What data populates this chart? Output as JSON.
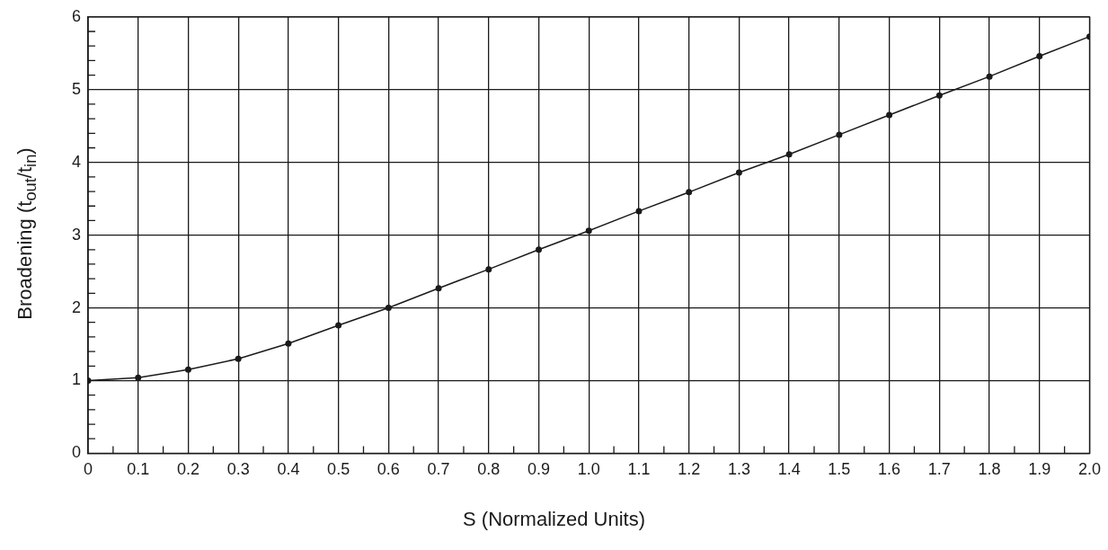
{
  "chart_data": {
    "type": "line",
    "xlabel": "S (Normalized Units)",
    "ylabel": "Broadening (t$_{out}$/t$_{in}$)",
    "x": [
      0,
      0.1,
      0.2,
      0.3,
      0.4,
      0.5,
      0.6,
      0.7,
      0.8,
      0.9,
      1.0,
      1.1,
      1.2,
      1.3,
      1.4,
      1.5,
      1.6,
      1.7,
      1.8,
      1.9,
      2.0
    ],
    "series": [
      {
        "color": "#1a1a1a",
        "values": [
          1.0,
          1.04,
          1.15,
          1.3,
          1.51,
          1.76,
          2.0,
          2.27,
          2.53,
          2.8,
          3.06,
          3.33,
          3.59,
          3.86,
          4.11,
          4.38,
          4.65,
          4.92,
          5.18,
          5.46,
          5.73
        ]
      }
    ],
    "xlim": [
      0,
      2.0
    ],
    "xticks": [
      {
        "value": 0,
        "label": "0"
      },
      {
        "value": 0.05,
        "label": null
      },
      {
        "value": 0.1,
        "label": "0.1"
      },
      {
        "value": 0.15,
        "label": null
      },
      {
        "value": 0.2,
        "label": "0.2"
      },
      {
        "value": 0.25,
        "label": null
      },
      {
        "value": 0.3,
        "label": "0.3"
      },
      {
        "value": 0.35,
        "label": null
      },
      {
        "value": 0.4,
        "label": "0.4"
      },
      {
        "value": 0.45,
        "label": null
      },
      {
        "value": 0.5,
        "label": "0.5"
      },
      {
        "value": 0.55,
        "label": null
      },
      {
        "value": 0.6,
        "label": "0.6"
      },
      {
        "value": 0.65,
        "label": null
      },
      {
        "value": 0.7,
        "label": "0.7"
      },
      {
        "value": 0.75,
        "label": null
      },
      {
        "value": 0.8,
        "label": "0.8"
      },
      {
        "value": 0.85,
        "label": null
      },
      {
        "value": 0.9,
        "label": "0.9"
      },
      {
        "value": 0.95,
        "label": null
      },
      {
        "value": 1.0,
        "label": "1.0"
      },
      {
        "value": 1.05,
        "label": null
      },
      {
        "value": 1.1,
        "label": "1.1"
      },
      {
        "value": 1.15,
        "label": null
      },
      {
        "value": 1.2,
        "label": "1.2"
      },
      {
        "value": 1.25,
        "label": null
      },
      {
        "value": 1.3,
        "label": "1.3"
      },
      {
        "value": 1.35,
        "label": null
      },
      {
        "value": 1.4,
        "label": "1.4"
      },
      {
        "value": 1.45,
        "label": null
      },
      {
        "value": 1.5,
        "label": "1.5"
      },
      {
        "value": 1.55,
        "label": null
      },
      {
        "value": 1.6,
        "label": "1.6"
      },
      {
        "value": 1.65,
        "label": null
      },
      {
        "value": 1.7,
        "label": "1.7"
      },
      {
        "value": 1.75,
        "label": null
      },
      {
        "value": 1.8,
        "label": "1.8"
      },
      {
        "value": 1.85,
        "label": null
      },
      {
        "value": 1.9,
        "label": "1.9"
      },
      {
        "value": 1.95,
        "label": null
      },
      {
        "value": 2.0,
        "label": "2.0"
      }
    ],
    "ylim": [
      0,
      6
    ],
    "yticks": [
      0,
      {
        "value": 0.2,
        "label": null
      },
      {
        "value": 0.4,
        "label": null
      },
      {
        "value": 0.6,
        "label": null
      },
      {
        "value": 0.8,
        "label": null
      },
      1,
      {
        "value": 1.2,
        "label": null
      },
      {
        "value": 1.4,
        "label": null
      },
      {
        "value": 1.6,
        "label": null
      },
      {
        "value": 1.8,
        "label": null
      },
      2,
      {
        "value": 2.2,
        "label": null
      },
      {
        "value": 2.4,
        "label": null
      },
      {
        "value": 2.6,
        "label": null
      },
      {
        "value": 2.8,
        "label": null
      },
      3,
      {
        "value": 3.2,
        "label": null
      },
      {
        "value": 3.4,
        "label": null
      },
      {
        "value": 3.6,
        "label": null
      },
      {
        "value": 3.8,
        "label": null
      },
      4,
      {
        "value": 4.2,
        "label": null
      },
      {
        "value": 4.4,
        "label": null
      },
      {
        "value": 4.6,
        "label": null
      },
      {
        "value": 4.8,
        "label": null
      },
      5,
      {
        "value": 5.2,
        "label": null
      },
      {
        "value": 5.4,
        "label": null
      },
      {
        "value": 5.6,
        "label": null
      },
      {
        "value": 5.8,
        "label": null
      },
      6
    ],
    "grid": true,
    "marker": "circle",
    "line_style": "solid",
    "legend": false
  }
}
